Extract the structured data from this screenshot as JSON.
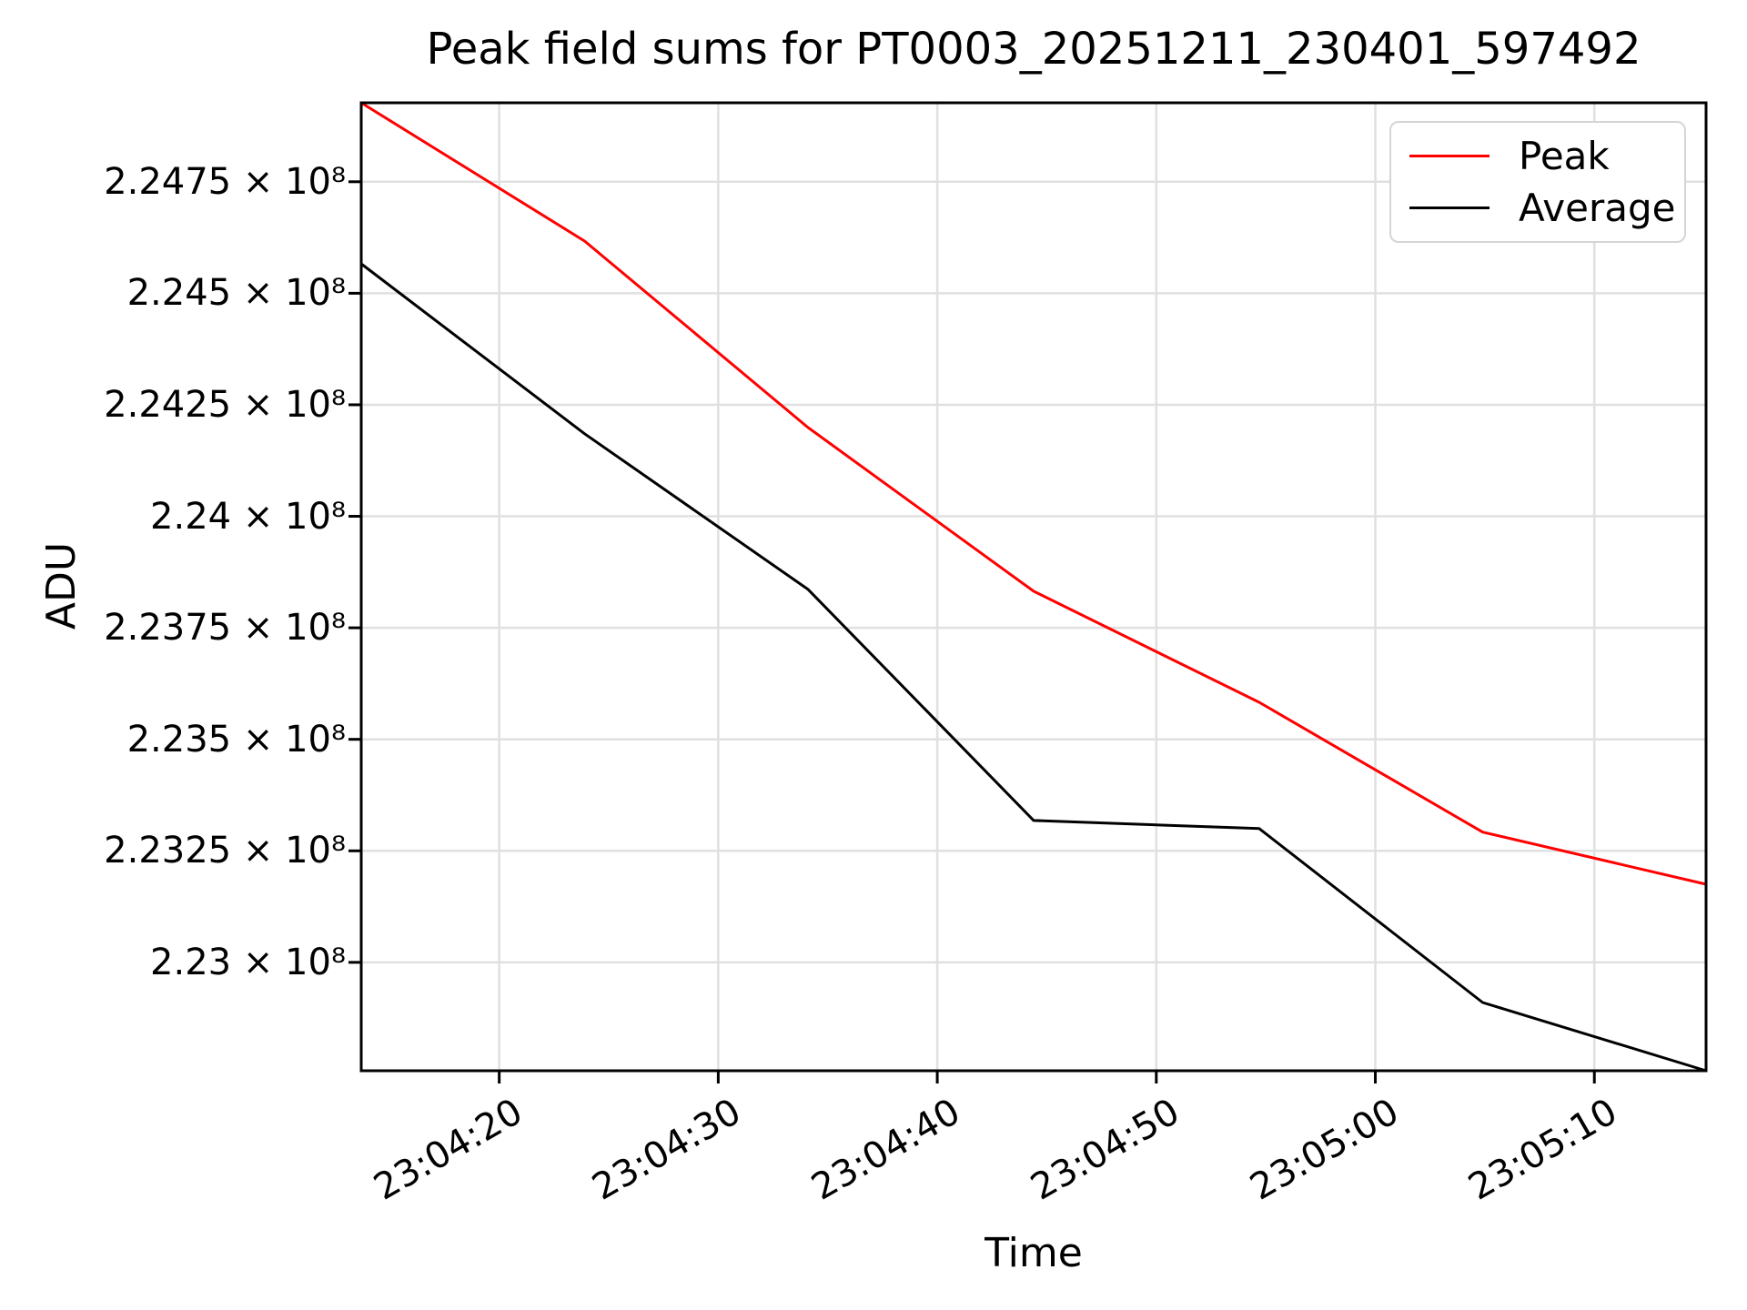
{
  "figure": {
    "title": "Peak field sums for PT0003_20251211_230401_597492",
    "xlabel": "Time",
    "ylabel": "ADU"
  },
  "legend": {
    "entries": [
      {
        "label": "Peak",
        "color": "#ff0000"
      },
      {
        "label": "Average",
        "color": "#000000"
      }
    ],
    "position": "upper right"
  },
  "colors": {
    "peak_line": "#ff0000",
    "average_line": "#000000",
    "grid": "#e0e0e0",
    "frame": "#000000",
    "background": "#ffffff"
  },
  "chart_data": {
    "type": "line",
    "title": "Peak field sums for PT0003_20251211_230401_597492",
    "xlabel": "Time",
    "ylabel": "ADU",
    "x_unit": "seconds after 23:04:00",
    "x": [
      13.7,
      23.9,
      34.1,
      44.4,
      54.7,
      64.9,
      75.1
    ],
    "series": [
      {
        "name": "Peak",
        "color": "#ff0000",
        "values": [
          224927000,
          224617000,
          224199000,
          223832000,
          223583000,
          223292000,
          223175000
        ]
      },
      {
        "name": "Average",
        "color": "#000000",
        "values": [
          224566000,
          224185000,
          223836000,
          223318000,
          223300000,
          222910000,
          222757000
        ]
      }
    ],
    "xlim": [
      13.7,
      75.1
    ],
    "ylim": [
      222757000,
      224927000
    ],
    "x_ticks": [
      {
        "t": 20,
        "label": "23:04:20"
      },
      {
        "t": 30,
        "label": "23:04:30"
      },
      {
        "t": 40,
        "label": "23:04:40"
      },
      {
        "t": 50,
        "label": "23:04:50"
      },
      {
        "t": 60,
        "label": "23:05:00"
      },
      {
        "t": 70,
        "label": "23:05:10"
      }
    ],
    "y_ticks": [
      {
        "v": 224750000,
        "label": "2.2475 × 10⁸"
      },
      {
        "v": 224500000,
        "label": "2.245 × 10⁸"
      },
      {
        "v": 224250000,
        "label": "2.2425 × 10⁸"
      },
      {
        "v": 224000000,
        "label": "2.24 × 10⁸"
      },
      {
        "v": 223750000,
        "label": "2.2375 × 10⁸"
      },
      {
        "v": 223500000,
        "label": "2.235 × 10⁸"
      },
      {
        "v": 223250000,
        "label": "2.2325 × 10⁸"
      },
      {
        "v": 223000000,
        "label": "2.23 × 10⁸"
      }
    ],
    "grid": true,
    "legend_position": "upper right"
  }
}
